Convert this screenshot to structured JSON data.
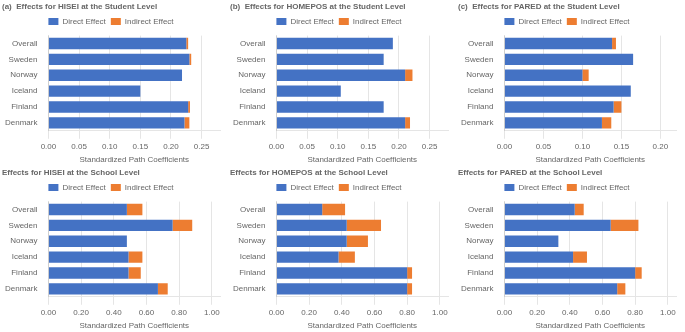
{
  "chart_data": [
    {
      "type": "bar",
      "orientation": "horizontal",
      "stacked": true,
      "title": "(a)  Effects for HISEI at the Student Level",
      "categories": [
        "Overall",
        "Sweden",
        "Norway",
        "Iceland",
        "Finland",
        "Denmark"
      ],
      "series": [
        {
          "name": "Direct Effect",
          "color": "#4472C4",
          "values": [
            0.225,
            0.23,
            0.218,
            0.15,
            0.228,
            0.222
          ]
        },
        {
          "name": "Indirect Effect",
          "color": "#ED7D31",
          "values": [
            0.003,
            0.003,
            0.0,
            0.0,
            0.003,
            0.008
          ]
        }
      ],
      "xlabel": "Standardized Path Coefficients",
      "xlim": [
        0,
        0.28
      ],
      "xticks": [
        {
          "value": 0,
          "label": "0.00"
        },
        0.05,
        {
          "value": 0.1,
          "label": "0.10"
        },
        0.15,
        {
          "value": 0.2,
          "label": "0.20"
        },
        0.25
      ],
      "grid": true,
      "legend": "top"
    },
    {
      "type": "bar",
      "orientation": "horizontal",
      "stacked": true,
      "title": "(b)  Effects for HOMEPOS at the Student Level",
      "categories": [
        "Overall",
        "Sweden",
        "Norway",
        "Iceland",
        "Finland",
        "Denmark"
      ],
      "series": [
        {
          "name": "Direct Effect",
          "color": "#4472C4",
          "values": [
            0.19,
            0.175,
            0.21,
            0.105,
            0.175,
            0.21
          ]
        },
        {
          "name": "Indirect Effect",
          "color": "#ED7D31",
          "values": [
            0.0,
            0.0,
            0.012,
            0.0,
            0.0,
            0.008
          ]
        }
      ],
      "xlabel": "Standardized Path Coefficients",
      "xlim": [
        0,
        0.28
      ],
      "xticks": [
        {
          "value": 0,
          "label": "0.00"
        },
        0.05,
        {
          "value": 0.1,
          "label": "0.10"
        },
        0.15,
        {
          "value": 0.2,
          "label": "0.20"
        },
        0.25
      ],
      "grid": true,
      "legend": "top"
    },
    {
      "type": "bar",
      "orientation": "horizontal",
      "stacked": true,
      "title": "(c)  Effects for PARED at the Student Level",
      "categories": [
        "Overall",
        "Sweden",
        "Norway",
        "Iceland",
        "Finland",
        "Denmark"
      ],
      "series": [
        {
          "name": "Direct Effect",
          "color": "#4472C4",
          "values": [
            0.138,
            0.165,
            0.1,
            0.162,
            0.14,
            0.125
          ]
        },
        {
          "name": "Indirect Effect",
          "color": "#ED7D31",
          "values": [
            0.005,
            0.0,
            0.008,
            0.0,
            0.01,
            0.012
          ]
        }
      ],
      "xlabel": "Standardized Path Coefficients",
      "xlim": [
        0,
        0.22
      ],
      "xticks": [
        {
          "value": 0,
          "label": "0.00"
        },
        0.05,
        {
          "value": 0.1,
          "label": "0.10"
        },
        0.15,
        {
          "value": 0.2,
          "label": "0.20"
        }
      ],
      "grid": true,
      "legend": "top"
    },
    {
      "type": "bar",
      "orientation": "horizontal",
      "stacked": true,
      "title": "Effects for HISEI at the School Level",
      "categories": [
        "Overall",
        "Sweden",
        "Norway",
        "Iceland",
        "Finland",
        "Denmark"
      ],
      "series": [
        {
          "name": "Direct Effect",
          "color": "#4472C4",
          "values": [
            0.48,
            0.76,
            0.48,
            0.49,
            0.49,
            0.67
          ]
        },
        {
          "name": "Indirect Effect",
          "color": "#ED7D31",
          "values": [
            0.095,
            0.12,
            0.0,
            0.085,
            0.075,
            0.06
          ]
        }
      ],
      "xlabel": "Standardized Path Coefficients",
      "xlim": [
        0,
        1.05
      ],
      "xticks": [
        {
          "value": 0,
          "label": "0.00"
        },
        {
          "value": 0.2,
          "label": "0.20"
        },
        {
          "value": 0.4,
          "label": "0.40"
        },
        {
          "value": 0.6,
          "label": "0.60"
        },
        {
          "value": 0.8,
          "label": "0.80"
        },
        {
          "value": 1,
          "label": "1.00"
        }
      ],
      "grid": true,
      "legend": "top"
    },
    {
      "type": "bar",
      "orientation": "horizontal",
      "stacked": true,
      "title": "Effects for HOMEPOS at the School Level",
      "categories": [
        "Overall",
        "Sweden",
        "Norway",
        "Iceland",
        "Finland",
        "Denmark"
      ],
      "series": [
        {
          "name": "Direct Effect",
          "color": "#4472C4",
          "values": [
            0.28,
            0.43,
            0.43,
            0.38,
            0.8,
            0.8
          ]
        },
        {
          "name": "Indirect Effect",
          "color": "#ED7D31",
          "values": [
            0.14,
            0.21,
            0.13,
            0.1,
            0.03,
            0.03
          ]
        }
      ],
      "xlabel": "Standardized Path Coefficients",
      "xlim": [
        0,
        1.05
      ],
      "xticks": [
        {
          "value": 0,
          "label": "0.00"
        },
        {
          "value": 0.2,
          "label": "0.20"
        },
        {
          "value": 0.4,
          "label": "0.40"
        },
        {
          "value": 0.6,
          "label": "0.60"
        },
        {
          "value": 0.8,
          "label": "0.80"
        },
        {
          "value": 1,
          "label": "1.00"
        }
      ],
      "grid": true,
      "legend": "top"
    },
    {
      "type": "bar",
      "orientation": "horizontal",
      "stacked": true,
      "title": "Effects for PARED at the School Level",
      "categories": [
        "Overall",
        "Sweden",
        "Norway",
        "Iceland",
        "Finland",
        "Denmark"
      ],
      "series": [
        {
          "name": "Direct Effect",
          "color": "#4472C4",
          "values": [
            0.43,
            0.65,
            0.33,
            0.42,
            0.8,
            0.69
          ]
        },
        {
          "name": "Indirect Effect",
          "color": "#ED7D31",
          "values": [
            0.055,
            0.17,
            0.0,
            0.085,
            0.04,
            0.05
          ]
        }
      ],
      "xlabel": "Standardized Path Coefficients",
      "xlim": [
        0,
        1.05
      ],
      "xticks": [
        {
          "value": 0,
          "label": "0.00"
        },
        {
          "value": 0.2,
          "label": "0.20"
        },
        {
          "value": 0.4,
          "label": "0.40"
        },
        {
          "value": 0.6,
          "label": "0.60"
        },
        {
          "value": 0.8,
          "label": "0.80"
        },
        {
          "value": 1,
          "label": "1.00"
        }
      ],
      "grid": true,
      "legend": "top"
    }
  ]
}
